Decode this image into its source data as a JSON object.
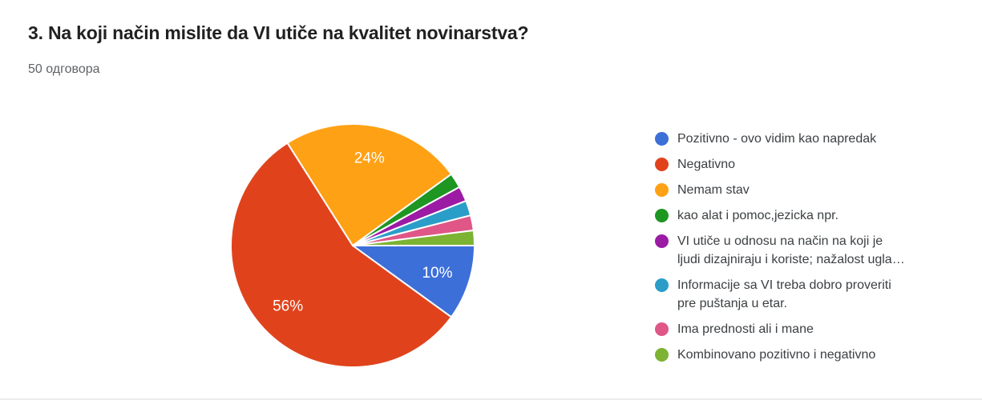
{
  "header": {
    "title": "3. Na koji način mislite da VI utiče na kvalitet novinarstva?",
    "responses_label": "50 одговора"
  },
  "chart_data": {
    "type": "pie",
    "title": "3. Na koji način mislite da VI utiče na kvalitet novinarstva?",
    "subtitle": "50 одговора",
    "total_responses_text": "50 одговора",
    "legend_position": "right",
    "start_angle_deg": 90,
    "direction": "clockwise",
    "label_threshold_pct": 5,
    "separator_color": "#ffffff",
    "slice_label_color": "#ffffff",
    "slices": [
      {
        "label": "Pozitivno - ovo vidim kao napredak",
        "pct": 10,
        "color": "#3D6FD8"
      },
      {
        "label": "Negativno",
        "pct": 56,
        "color": "#E0431C"
      },
      {
        "label": "Nemam stav",
        "pct": 24,
        "color": "#FFA115"
      },
      {
        "label": "kao alat i pomoc,jezicka npr.",
        "pct": 2,
        "color": "#1E9622"
      },
      {
        "label": "VI utiče u odnosu na način na koji je ljudi dizajniraju i koriste; nažalost ugla…",
        "pct": 2,
        "color": "#9C1BA4"
      },
      {
        "label": "Informacije sa VI treba dobro proveriti pre puštanja u etar.",
        "pct": 2,
        "color": "#2B9DC9"
      },
      {
        "label": "Ima prednosti ali i mane",
        "pct": 2,
        "color": "#DF5687"
      },
      {
        "label": "Kombinovano pozitivno i negativno",
        "pct": 2,
        "color": "#7CB332"
      }
    ]
  }
}
